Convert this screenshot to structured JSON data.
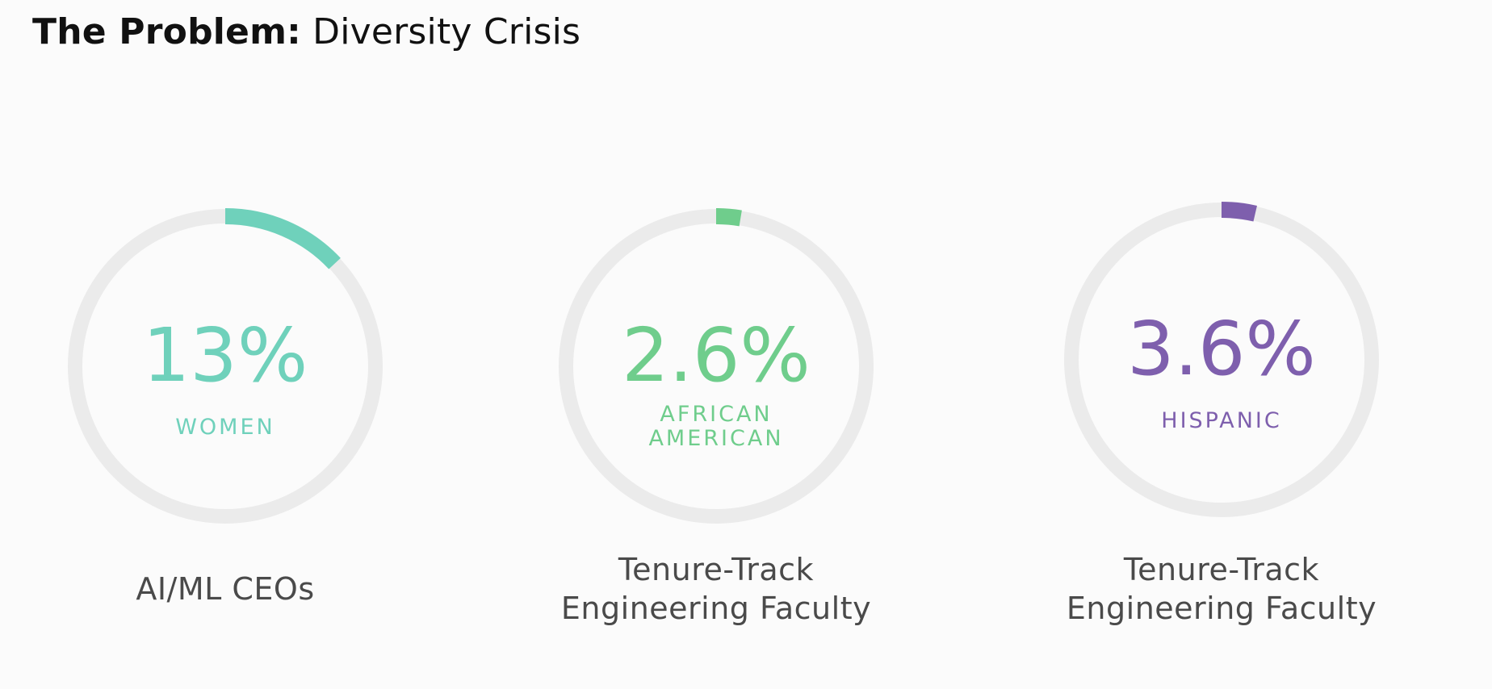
{
  "slide": {
    "title_bold": "The Problem:",
    "title_regular": " Diversity Crisis"
  },
  "chart_data": [
    {
      "type": "pie",
      "value_label": "13%",
      "value_percent": 13,
      "category_lines": [
        "WOMEN"
      ],
      "caption_lines": [
        "AI/ML CEOs"
      ],
      "color": "#6fd1bb",
      "track_color": "#ebebeb"
    },
    {
      "type": "pie",
      "value_label": "2.6%",
      "value_percent": 2.6,
      "category_lines": [
        "AFRICAN",
        "AMERICAN"
      ],
      "caption_lines": [
        "Tenure-Track",
        "Engineering Faculty"
      ],
      "color": "#6fcd8c",
      "track_color": "#ebebeb"
    },
    {
      "type": "pie",
      "value_label": "3.6%",
      "value_percent": 3.6,
      "category_lines": [
        "HISPANIC"
      ],
      "caption_lines": [
        "Tenure-Track",
        "Engineering Faculty"
      ],
      "color": "#7e5fad",
      "track_color": "#ebebeb"
    }
  ]
}
